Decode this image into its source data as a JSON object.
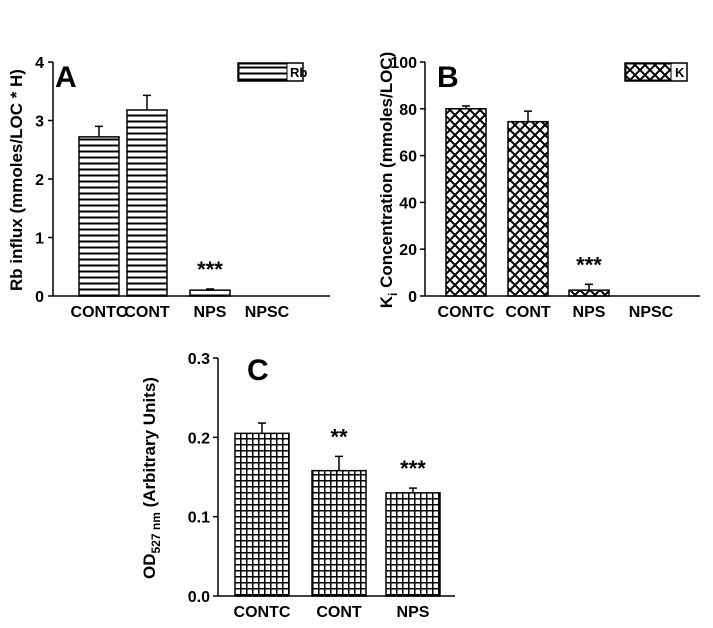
{
  "chart_data": [
    {
      "type": "bar",
      "panel": "A",
      "ylabel": "Rb influx (mmoles/LOC * H)",
      "ylim": [
        0,
        4
      ],
      "yticks": [
        "0",
        "1",
        "2",
        "3",
        "4"
      ],
      "categories": [
        "CONTC",
        "CONT",
        "NPS",
        "NPSC"
      ],
      "values": [
        2.72,
        3.18,
        0.1,
        0
      ],
      "errors": [
        0.18,
        0.25,
        0.02,
        0
      ],
      "significance": [
        "",
        "",
        "***",
        ""
      ],
      "legend": "Rb",
      "pattern": "horizontal-lines"
    },
    {
      "type": "bar",
      "panel": "B",
      "ylabel": "Ki Concentration (mmoles/LOC)",
      "ylabel_main": "K",
      "ylabel_sub": "i",
      "ylabel_rest": " Concentration (mmoles/LOC)",
      "ylim": [
        0,
        100
      ],
      "yticks": [
        "0",
        "20",
        "40",
        "60",
        "80",
        "100"
      ],
      "categories": [
        "CONTC",
        "CONT",
        "NPS",
        "NPSC"
      ],
      "values": [
        80,
        74.5,
        2.5,
        0
      ],
      "errors": [
        1.2,
        4.5,
        2.5,
        0
      ],
      "significance": [
        "",
        "",
        "***",
        ""
      ],
      "legend": "K",
      "pattern": "crosshatch"
    },
    {
      "type": "bar",
      "panel": "C",
      "ylabel": "OD527 nm (Arbitrary Units)",
      "ylabel_main": "OD",
      "ylabel_sub": "527 nm",
      "ylabel_rest": " (Arbitrary Units)",
      "ylim": [
        0,
        0.3
      ],
      "yticks": [
        "0.0",
        "0.1",
        "0.2",
        "0.3"
      ],
      "categories": [
        "CONTC",
        "CONT",
        "NPS"
      ],
      "values": [
        0.205,
        0.158,
        0.13
      ],
      "errors": [
        0.013,
        0.018,
        0.006
      ],
      "significance": [
        "",
        "**",
        "***"
      ],
      "pattern": "grid"
    }
  ]
}
